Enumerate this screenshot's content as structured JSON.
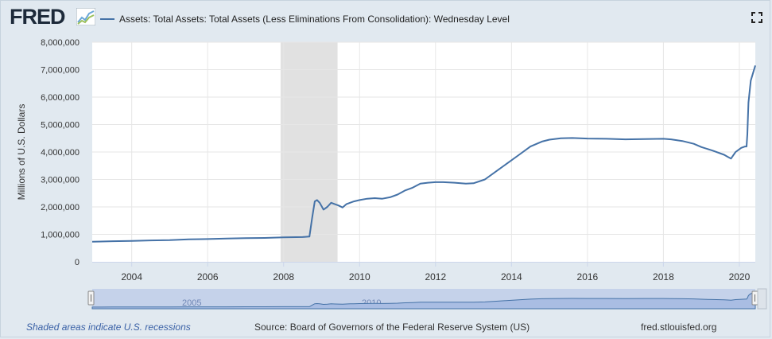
{
  "header": {
    "logo_text": "FRED",
    "logo_icon": "fred-graph-icon",
    "fullscreen_icon": "fullscreen-icon"
  },
  "legend": {
    "label": "Assets: Total Assets: Total Assets (Less Eliminations From Consolidation): Wednesday Level",
    "color": "#4572a7"
  },
  "footer": {
    "recession_note": "Shaded areas indicate U.S. recessions",
    "source": "Source: Board of Governors of the Federal Reserve System (US)",
    "site": "fred.stlouisfed.org"
  },
  "chart_data": {
    "type": "line",
    "title": "",
    "xlabel": "",
    "ylabel": "Millions of U.S. Dollars",
    "xlim": [
      2002.96,
      2020.42
    ],
    "ylim": [
      0,
      8000000
    ],
    "yticks": [
      0,
      1000000,
      2000000,
      3000000,
      4000000,
      5000000,
      6000000,
      7000000,
      8000000
    ],
    "ytick_labels": [
      "0",
      "1,000,000",
      "2,000,000",
      "3,000,000",
      "4,000,000",
      "5,000,000",
      "6,000,000",
      "7,000,000",
      "8,000,000"
    ],
    "xticks": [
      2004,
      2006,
      2008,
      2010,
      2012,
      2014,
      2016,
      2018,
      2020
    ],
    "xtick_labels": [
      "2004",
      "2006",
      "2008",
      "2010",
      "2012",
      "2014",
      "2016",
      "2018",
      "2020"
    ],
    "grid": true,
    "legend_position": "top-left",
    "recession_shading": [
      [
        2007.92,
        2009.42
      ]
    ],
    "series": [
      {
        "name": "Assets: Total Assets: Total Assets (Less Eliminations From Consolidation): Wednesday Level",
        "color": "#4572a7",
        "x": [
          2002.96,
          2003.5,
          2004.0,
          2004.5,
          2005.0,
          2005.5,
          2006.0,
          2006.5,
          2007.0,
          2007.5,
          2008.0,
          2008.5,
          2008.68,
          2008.75,
          2008.82,
          2008.88,
          2008.95,
          2009.05,
          2009.15,
          2009.25,
          2009.35,
          2009.45,
          2009.55,
          2009.65,
          2009.75,
          2009.85,
          2010.0,
          2010.2,
          2010.4,
          2010.6,
          2010.8,
          2011.0,
          2011.2,
          2011.4,
          2011.6,
          2011.8,
          2012.0,
          2012.2,
          2012.5,
          2012.8,
          2013.0,
          2013.3,
          2013.6,
          2013.9,
          2014.2,
          2014.5,
          2014.8,
          2015.0,
          2015.3,
          2015.6,
          2016.0,
          2016.5,
          2017.0,
          2017.5,
          2018.0,
          2018.2,
          2018.5,
          2018.8,
          2019.0,
          2019.3,
          2019.6,
          2019.7,
          2019.78,
          2019.9,
          2020.05,
          2020.15,
          2020.19,
          2020.21,
          2020.24,
          2020.3,
          2020.42
        ],
        "values": [
          730000,
          750000,
          760000,
          780000,
          790000,
          820000,
          830000,
          850000,
          860000,
          870000,
          890000,
          900000,
          920000,
          1600000,
          2200000,
          2250000,
          2150000,
          1900000,
          2000000,
          2150000,
          2100000,
          2050000,
          1980000,
          2100000,
          2150000,
          2200000,
          2250000,
          2300000,
          2320000,
          2300000,
          2350000,
          2450000,
          2600000,
          2700000,
          2850000,
          2880000,
          2900000,
          2900000,
          2880000,
          2850000,
          2860000,
          3000000,
          3300000,
          3600000,
          3900000,
          4200000,
          4380000,
          4450000,
          4500000,
          4510000,
          4490000,
          4480000,
          4460000,
          4470000,
          4480000,
          4460000,
          4400000,
          4300000,
          4180000,
          4050000,
          3900000,
          3820000,
          3760000,
          4000000,
          4150000,
          4200000,
          4200000,
          4650000,
          5800000,
          6600000,
          7150000
        ]
      }
    ]
  }
}
